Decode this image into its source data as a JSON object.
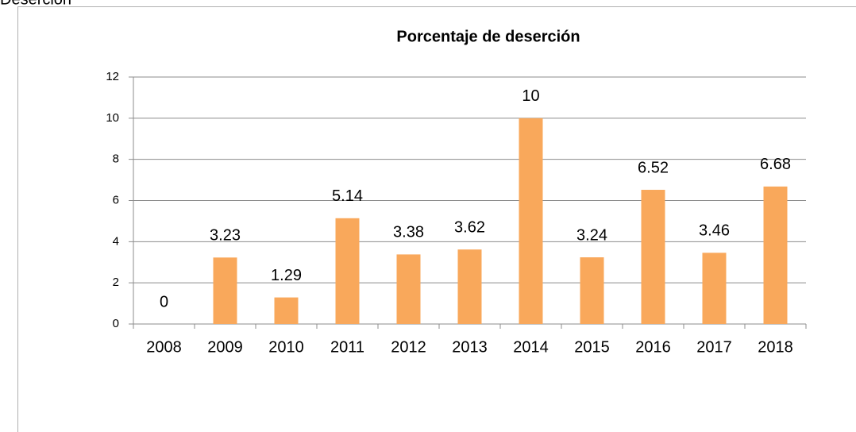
{
  "header": {
    "title": "Deserción"
  },
  "chart_data": {
    "type": "bar",
    "title": "Porcentaje de deserción",
    "categories": [
      "2008",
      "2009",
      "2010",
      "2011",
      "2012",
      "2013",
      "2014",
      "2015",
      "2016",
      "2017",
      "2018"
    ],
    "values": [
      0,
      3.23,
      1.29,
      5.14,
      3.38,
      3.62,
      10,
      3.24,
      6.52,
      3.46,
      6.68
    ],
    "color": "#f9a85b",
    "ylim": [
      0,
      12
    ],
    "yticks": [
      0,
      2,
      4,
      6,
      8,
      10,
      12
    ],
    "grid": true
  }
}
